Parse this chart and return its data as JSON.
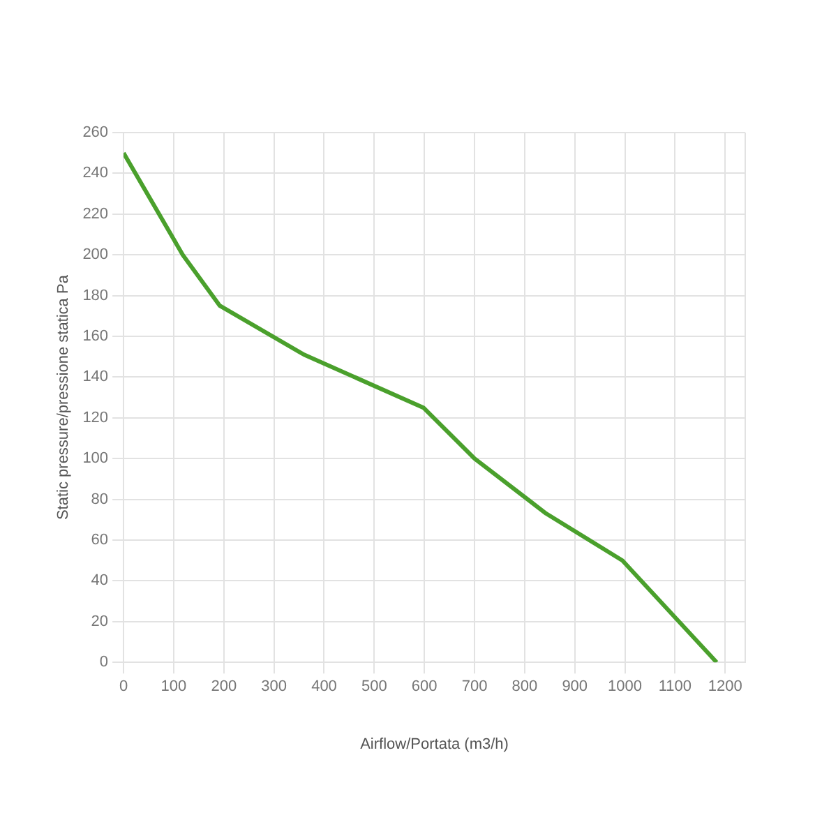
{
  "chart_data": {
    "type": "line",
    "xlabel": "Airflow/Portata (m3/h)",
    "ylabel": "Static pressure/pressione statica Pa",
    "x": [
      0,
      118,
      192,
      360,
      598,
      700,
      843,
      995,
      1183
    ],
    "series": [
      {
        "color": "#4aa02c",
        "values": [
          250,
          200,
          175,
          151,
          125,
          100,
          73,
          50,
          0
        ]
      }
    ],
    "xlim": [
      0,
      1240
    ],
    "xticks": [
      0,
      100,
      200,
      300,
      400,
      500,
      600,
      700,
      800,
      900,
      1000,
      1100,
      1200
    ],
    "ylim": [
      0,
      260
    ],
    "yticks": [
      0,
      20,
      40,
      60,
      80,
      100,
      120,
      140,
      160,
      180,
      200,
      220,
      240,
      260
    ],
    "grid": true,
    "legend": false,
    "marker": "none",
    "line_style": "solid"
  }
}
